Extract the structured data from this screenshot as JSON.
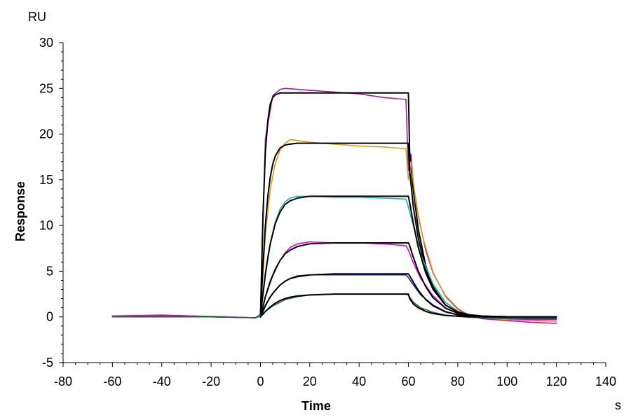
{
  "chart_data": {
    "type": "line",
    "title": "",
    "xlabel": "Time",
    "ylabel": "Response",
    "x_unit": "s",
    "y_unit": "RU",
    "xlim": [
      -80,
      140
    ],
    "ylim": [
      -5,
      30
    ],
    "x_ticks": [
      -80,
      -60,
      -40,
      -20,
      0,
      20,
      40,
      60,
      80,
      100,
      120,
      140
    ],
    "y_ticks": [
      -5,
      0,
      5,
      10,
      15,
      20,
      25,
      30
    ],
    "grid": false,
    "legend": "none",
    "series": [
      {
        "color": "#a0209f",
        "curve": "measured",
        "x": [
          -60,
          -40,
          -20,
          -2,
          0,
          2,
          5,
          8,
          10,
          15,
          20,
          30,
          40,
          50,
          59,
          60,
          61,
          62,
          64,
          67,
          70,
          75,
          80,
          85,
          90,
          100,
          110,
          120
        ],
        "y": [
          0.1,
          0.15,
          0.05,
          -0.1,
          0.3,
          19.5,
          24.2,
          24.9,
          25.0,
          24.9,
          24.8,
          24.6,
          24.4,
          24.0,
          23.8,
          16.0,
          17.8,
          14.5,
          11.0,
          7.3,
          4.8,
          2.3,
          0.9,
          0.1,
          -0.2,
          -0.4,
          -0.6,
          -0.7
        ]
      },
      {
        "color": "#000000",
        "curve": "fit",
        "x": [
          0,
          1,
          2,
          3,
          4,
          5,
          6,
          8,
          10,
          15,
          20,
          30,
          40,
          50,
          60,
          60.5,
          62,
          64,
          67,
          70,
          75,
          80,
          85,
          90,
          100,
          110,
          120
        ],
        "y": [
          0,
          11.0,
          18.0,
          21.5,
          23.3,
          24.0,
          24.3,
          24.5,
          24.5,
          24.5,
          24.5,
          24.5,
          24.5,
          24.5,
          24.5,
          18.0,
          13.8,
          9.6,
          5.6,
          3.3,
          1.3,
          0.5,
          0.2,
          0.08,
          0.02,
          0.0,
          0.0
        ]
      },
      {
        "color": "#d4a017",
        "curve": "measured",
        "x": [
          -60,
          -40,
          -20,
          -2,
          0,
          2,
          4,
          6,
          8,
          10,
          12,
          15,
          20,
          30,
          40,
          50,
          59,
          60,
          61,
          63,
          66,
          70,
          75,
          80,
          85,
          90,
          100,
          110,
          120
        ],
        "y": [
          0.1,
          0.1,
          0.05,
          -0.1,
          0.2,
          9.0,
          14.0,
          16.8,
          18.3,
          19.0,
          19.4,
          19.3,
          19.1,
          18.9,
          18.7,
          18.6,
          18.4,
          15.0,
          17.0,
          12.5,
          8.5,
          4.9,
          2.2,
          0.8,
          0.1,
          -0.1,
          -0.3,
          -0.4,
          -0.5
        ]
      },
      {
        "color": "#000000",
        "curve": "fit",
        "x": [
          0,
          1,
          2,
          3,
          4,
          5,
          6,
          8,
          10,
          12,
          15,
          20,
          30,
          40,
          50,
          60,
          60.5,
          62,
          64,
          67,
          70,
          75,
          80,
          85,
          90,
          100,
          110,
          120
        ],
        "y": [
          0,
          5.5,
          10.0,
          13.2,
          15.3,
          16.7,
          17.6,
          18.5,
          18.8,
          18.9,
          19.0,
          19.0,
          19.0,
          19.0,
          19.0,
          19.0,
          16.0,
          12.0,
          8.6,
          5.2,
          3.1,
          1.3,
          0.5,
          0.2,
          0.08,
          0.02,
          0.0,
          0.0
        ]
      },
      {
        "color": "#20b2aa",
        "curve": "measured",
        "x": [
          -60,
          -40,
          -20,
          -2,
          0,
          2,
          4,
          6,
          8,
          10,
          12,
          15,
          20,
          30,
          40,
          50,
          59,
          60,
          62,
          65,
          70,
          75,
          80,
          85,
          90,
          100,
          110,
          120
        ],
        "y": [
          0.0,
          0.05,
          0.0,
          -0.1,
          0.2,
          4.5,
          8.0,
          10.4,
          11.8,
          12.6,
          13.0,
          13.2,
          13.2,
          13.1,
          13.1,
          13.0,
          12.9,
          12.0,
          10.0,
          6.8,
          3.6,
          1.6,
          0.6,
          0.1,
          -0.1,
          -0.2,
          -0.3,
          -0.3
        ]
      },
      {
        "color": "#000000",
        "curve": "fit",
        "x": [
          0,
          1,
          2,
          3,
          4,
          6,
          8,
          10,
          12,
          15,
          20,
          30,
          40,
          50,
          60,
          60.5,
          62,
          64,
          67,
          70,
          75,
          80,
          85,
          90,
          100,
          110,
          120
        ],
        "y": [
          0,
          2.5,
          4.7,
          6.5,
          8.0,
          10.2,
          11.5,
          12.3,
          12.7,
          13.0,
          13.2,
          13.2,
          13.2,
          13.2,
          13.2,
          12.5,
          10.2,
          7.6,
          4.8,
          3.0,
          1.3,
          0.55,
          0.22,
          0.09,
          0.02,
          0.0,
          0.0
        ]
      },
      {
        "color": "#e000e0",
        "curve": "measured",
        "x": [
          -60,
          -40,
          -20,
          -2,
          0,
          2,
          5,
          8,
          10,
          12,
          15,
          20,
          30,
          40,
          50,
          59,
          60,
          62,
          65,
          70,
          75,
          80,
          85,
          90,
          100,
          110,
          120
        ],
        "y": [
          0.1,
          0.2,
          0.05,
          -0.1,
          0.1,
          2.2,
          4.5,
          6.2,
          7.0,
          7.6,
          8.0,
          8.2,
          8.1,
          8.1,
          8.0,
          7.8,
          7.3,
          5.9,
          4.2,
          2.3,
          1.0,
          0.35,
          0.0,
          -0.1,
          -0.2,
          -0.3,
          -0.3
        ]
      },
      {
        "color": "#000000",
        "curve": "fit",
        "x": [
          0,
          2,
          4,
          6,
          8,
          10,
          12,
          15,
          20,
          30,
          40,
          50,
          60,
          60.5,
          62,
          64,
          67,
          70,
          75,
          80,
          85,
          90,
          100,
          110,
          120
        ],
        "y": [
          0,
          2.2,
          3.9,
          5.2,
          6.2,
          6.9,
          7.3,
          7.7,
          8.0,
          8.1,
          8.1,
          8.1,
          8.1,
          7.8,
          6.5,
          5.0,
          3.3,
          2.1,
          0.95,
          0.4,
          0.17,
          0.07,
          0.02,
          0.0,
          0.0
        ]
      },
      {
        "color": "#1f1fb4",
        "curve": "measured",
        "x": [
          -60,
          -40,
          -20,
          -2,
          0,
          2,
          5,
          8,
          10,
          12,
          15,
          20,
          30,
          40,
          50,
          59,
          60,
          62,
          65,
          70,
          75,
          80,
          85,
          90,
          100,
          110,
          120
        ],
        "y": [
          0.0,
          0.05,
          0.0,
          -0.1,
          0.1,
          1.3,
          2.6,
          3.5,
          3.9,
          4.2,
          4.5,
          4.6,
          4.6,
          4.6,
          4.6,
          4.6,
          4.3,
          3.5,
          2.4,
          1.3,
          0.6,
          0.2,
          0.0,
          -0.1,
          -0.1,
          -0.2,
          -0.2
        ]
      },
      {
        "color": "#000000",
        "curve": "fit",
        "x": [
          0,
          2,
          4,
          6,
          8,
          10,
          12,
          15,
          20,
          30,
          40,
          50,
          60,
          60.5,
          62,
          64,
          67,
          70,
          75,
          80,
          85,
          90,
          100,
          110,
          120
        ],
        "y": [
          0,
          1.2,
          2.2,
          2.9,
          3.5,
          3.9,
          4.2,
          4.4,
          4.6,
          4.7,
          4.7,
          4.7,
          4.7,
          4.5,
          3.8,
          2.9,
          1.9,
          1.2,
          0.55,
          0.24,
          0.1,
          0.04,
          0.01,
          0.0,
          0.0
        ]
      },
      {
        "color": "#1e6b2e",
        "curve": "measured",
        "x": [
          -60,
          -40,
          -20,
          -2,
          0,
          2,
          5,
          8,
          10,
          15,
          20,
          30,
          40,
          50,
          59,
          60,
          62,
          65,
          70,
          75,
          80,
          85,
          90,
          100,
          110,
          120
        ],
        "y": [
          0.0,
          0.0,
          0.0,
          -0.1,
          0.1,
          0.6,
          1.2,
          1.6,
          1.9,
          2.2,
          2.4,
          2.5,
          2.5,
          2.5,
          2.5,
          2.4,
          1.6,
          1.0,
          0.5,
          0.2,
          0.05,
          -0.05,
          -0.1,
          -0.1,
          -0.1,
          -0.1
        ]
      },
      {
        "color": "#000000",
        "curve": "fit",
        "x": [
          0,
          2,
          4,
          6,
          8,
          10,
          12,
          15,
          20,
          30,
          40,
          50,
          60,
          60.5,
          62,
          64,
          67,
          70,
          75,
          80,
          85,
          90,
          100,
          110,
          120
        ],
        "y": [
          0,
          0.6,
          1.1,
          1.5,
          1.8,
          2.0,
          2.15,
          2.3,
          2.4,
          2.5,
          2.5,
          2.5,
          2.5,
          2.0,
          1.4,
          1.0,
          0.6,
          0.37,
          0.16,
          0.07,
          0.03,
          0.01,
          0.0,
          0.0,
          0.0
        ]
      }
    ]
  }
}
